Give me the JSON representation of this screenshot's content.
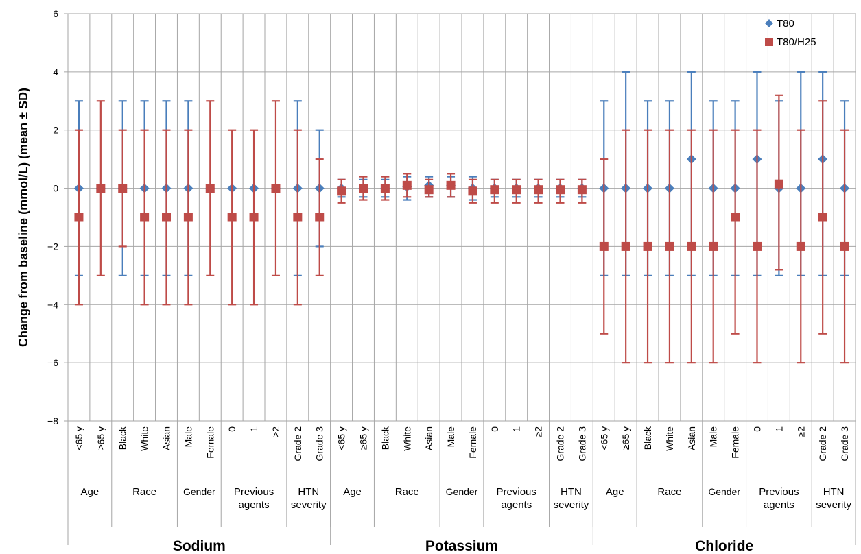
{
  "chart_data": {
    "type": "scatter",
    "ylabel": "Change from baseline (mmol/L) (mean ± SD)",
    "ylim": [
      -8,
      6
    ],
    "yticks": [
      6,
      4,
      2,
      0,
      -2,
      -4,
      -6,
      -8
    ],
    "ytick_labels": [
      "6",
      "4",
      "2",
      "0",
      "−2",
      "−4",
      "−6",
      "−8"
    ],
    "grid": true,
    "legend_position": "top-right",
    "series": [
      {
        "name": "T80",
        "marker": "diamond",
        "color": "#4a7ebb"
      },
      {
        "name": "T80/H25",
        "marker": "square",
        "color": "#be4b48"
      }
    ],
    "panels": [
      {
        "label": "Sodium",
        "groups": [
          {
            "label": [
              "Age"
            ],
            "categories": [
              "<65 y",
              "≥65 y"
            ]
          },
          {
            "label": [
              "Race"
            ],
            "categories": [
              "Black",
              "White",
              "Asian"
            ]
          },
          {
            "label": [
              "Gender"
            ],
            "categories": [
              "Male",
              "Female"
            ]
          },
          {
            "label": [
              "Previous",
              "agents"
            ],
            "categories": [
              "0",
              "1",
              "≥2"
            ]
          },
          {
            "label": [
              "HTN",
              "severity"
            ],
            "categories": [
              "Grade 2",
              "Grade 3"
            ]
          }
        ],
        "T80": {
          "mean": [
            0,
            0,
            0,
            0,
            0,
            0,
            0,
            0,
            0,
            0,
            0,
            0
          ],
          "low": [
            -3,
            0,
            -3,
            -3,
            -3,
            -3,
            0,
            0,
            0,
            0,
            -3,
            -2
          ],
          "high": [
            3,
            0,
            3,
            3,
            3,
            3,
            0,
            0,
            0,
            0,
            3,
            2
          ]
        },
        "T80/H25": {
          "mean": [
            -1,
            0,
            0,
            -1,
            -1,
            -1,
            0,
            -1,
            -1,
            0,
            -1,
            -1
          ],
          "low": [
            -4,
            -3,
            -2,
            -4,
            -4,
            -4,
            -3,
            -4,
            -4,
            -3,
            -4,
            -3
          ],
          "high": [
            2,
            3,
            2,
            2,
            2,
            2,
            3,
            2,
            2,
            3,
            2,
            1
          ]
        }
      },
      {
        "label": "Potassium",
        "groups": [
          {
            "label": [
              "Age"
            ],
            "categories": [
              "<65 y",
              "≥65 y"
            ]
          },
          {
            "label": [
              "Race"
            ],
            "categories": [
              "Black",
              "White",
              "Asian"
            ]
          },
          {
            "label": [
              "Gender"
            ],
            "categories": [
              "Male",
              "Female"
            ]
          },
          {
            "label": [
              "Previous",
              "agents"
            ],
            "categories": [
              "0",
              "1",
              "≥2"
            ]
          },
          {
            "label": [
              "HTN",
              "severity"
            ],
            "categories": [
              "Grade 2",
              "Grade 3"
            ]
          }
        ],
        "T80": {
          "mean": [
            0,
            0,
            0,
            0.05,
            0.1,
            0.1,
            0,
            0,
            0,
            0,
            0,
            0
          ],
          "low": [
            -0.3,
            -0.3,
            -0.3,
            -0.4,
            -0.3,
            -0.3,
            -0.4,
            -0.3,
            -0.3,
            -0.3,
            -0.3,
            -0.3
          ],
          "high": [
            0.3,
            0.3,
            0.3,
            0.4,
            0.4,
            0.4,
            0.4,
            0.3,
            0.3,
            0.3,
            0.3,
            0.3
          ]
        },
        "T80/H25": {
          "mean": [
            -0.1,
            0,
            0,
            0.1,
            -0.05,
            0.1,
            -0.1,
            -0.05,
            -0.05,
            -0.05,
            -0.05,
            -0.05
          ],
          "low": [
            -0.5,
            -0.4,
            -0.4,
            -0.3,
            -0.3,
            -0.3,
            -0.5,
            -0.5,
            -0.5,
            -0.5,
            -0.5,
            -0.5
          ],
          "high": [
            0.3,
            0.4,
            0.4,
            0.5,
            0.3,
            0.5,
            0.3,
            0.3,
            0.3,
            0.3,
            0.3,
            0.3
          ]
        }
      },
      {
        "label": "Chloride",
        "groups": [
          {
            "label": [
              "Age"
            ],
            "categories": [
              "<65 y",
              "≥65 y"
            ]
          },
          {
            "label": [
              "Race"
            ],
            "categories": [
              "Black",
              "White",
              "Asian"
            ]
          },
          {
            "label": [
              "Gender"
            ],
            "categories": [
              "Male",
              "Female"
            ]
          },
          {
            "label": [
              "Previous",
              "agents"
            ],
            "categories": [
              "0",
              "1",
              "≥2"
            ]
          },
          {
            "label": [
              "HTN",
              "severity"
            ],
            "categories": [
              "Grade 2",
              "Grade 3"
            ]
          }
        ],
        "T80": {
          "mean": [
            0,
            0,
            0,
            0,
            1,
            0,
            0,
            1,
            0,
            0,
            1,
            0
          ],
          "low": [
            -3,
            -3,
            -3,
            -3,
            -3,
            -3,
            -3,
            -3,
            -3,
            -3,
            -3,
            -3
          ],
          "high": [
            3,
            4,
            3,
            3,
            4,
            3,
            3,
            4,
            3,
            4,
            4,
            3
          ]
        },
        "T80/H25": {
          "mean": [
            -2,
            -2,
            -2,
            -2,
            -2,
            -2,
            -1,
            -2,
            0.15,
            -2,
            -1,
            -2
          ],
          "low": [
            -5,
            -6,
            -6,
            -6,
            -6,
            -6,
            -5,
            -6,
            -2.8,
            -6,
            -5,
            -6
          ],
          "high": [
            1,
            2,
            2,
            2,
            2,
            2,
            2,
            2,
            3.2,
            2,
            3,
            2
          ]
        }
      }
    ]
  }
}
